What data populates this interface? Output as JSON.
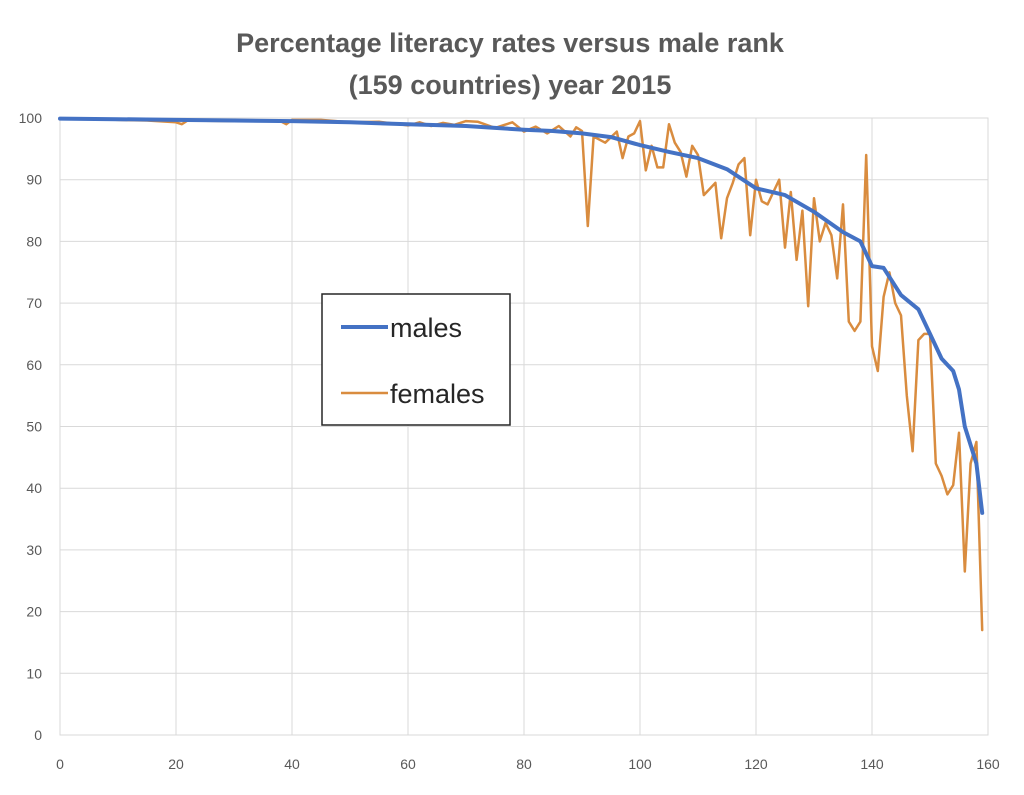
{
  "chart_data": {
    "type": "line",
    "title_lines": [
      "Percentage literacy rates versus male rank",
      "(159 countries) year 2015"
    ],
    "xlabel": "",
    "ylabel": "",
    "xlim": [
      0,
      160
    ],
    "ylim": [
      0,
      100
    ],
    "x_ticks": [
      0,
      20,
      40,
      60,
      80,
      100,
      120,
      140,
      160
    ],
    "y_ticks": [
      0,
      10,
      20,
      30,
      40,
      50,
      60,
      70,
      80,
      90,
      100
    ],
    "grid": true,
    "legend_position": "center-left",
    "series": [
      {
        "name": "males",
        "color": "#4472c4",
        "points": [
          [
            0,
            99.9
          ],
          [
            10,
            99.8
          ],
          [
            20,
            99.7
          ],
          [
            30,
            99.6
          ],
          [
            40,
            99.5
          ],
          [
            50,
            99.3
          ],
          [
            60,
            99.0
          ],
          [
            70,
            98.7
          ],
          [
            75,
            98.4
          ],
          [
            80,
            98.1
          ],
          [
            85,
            97.9
          ],
          [
            90,
            97.5
          ],
          [
            95,
            96.9
          ],
          [
            100,
            95.6
          ],
          [
            105,
            94.5
          ],
          [
            110,
            93.5
          ],
          [
            115,
            91.7
          ],
          [
            120,
            88.6
          ],
          [
            125,
            87.5
          ],
          [
            130,
            84.8
          ],
          [
            135,
            81.5
          ],
          [
            138,
            80.0
          ],
          [
            140,
            76.0
          ],
          [
            142,
            75.7
          ],
          [
            145,
            71.3
          ],
          [
            148,
            69.0
          ],
          [
            150,
            65.0
          ],
          [
            152,
            61.0
          ],
          [
            154,
            59.0
          ],
          [
            155,
            56.0
          ],
          [
            156,
            50.0
          ],
          [
            157,
            47.0
          ],
          [
            158,
            44.0
          ],
          [
            159,
            36.0
          ]
        ]
      },
      {
        "name": "females",
        "color": "#d98c3f",
        "points": [
          [
            0,
            99.8
          ],
          [
            5,
            99.9
          ],
          [
            10,
            99.7
          ],
          [
            15,
            99.6
          ],
          [
            20,
            99.3
          ],
          [
            21,
            99.0
          ],
          [
            22,
            99.6
          ],
          [
            30,
            99.5
          ],
          [
            38,
            99.5
          ],
          [
            39,
            99.0
          ],
          [
            40,
            99.7
          ],
          [
            45,
            99.7
          ],
          [
            50,
            99.3
          ],
          [
            55,
            99.4
          ],
          [
            60,
            98.8
          ],
          [
            62,
            99.3
          ],
          [
            64,
            98.7
          ],
          [
            66,
            99.2
          ],
          [
            68,
            98.9
          ],
          [
            70,
            99.5
          ],
          [
            72,
            99.4
          ],
          [
            75,
            98.4
          ],
          [
            78,
            99.3
          ],
          [
            80,
            97.8
          ],
          [
            82,
            98.6
          ],
          [
            84,
            97.5
          ],
          [
            86,
            98.7
          ],
          [
            88,
            97.0
          ],
          [
            89,
            98.5
          ],
          [
            90,
            97.9
          ],
          [
            91,
            82.5
          ],
          [
            92,
            97.0
          ],
          [
            94,
            96.0
          ],
          [
            96,
            97.8
          ],
          [
            97,
            93.5
          ],
          [
            98,
            97.0
          ],
          [
            99,
            97.5
          ],
          [
            100,
            99.5
          ],
          [
            101,
            91.5
          ],
          [
            102,
            95.5
          ],
          [
            103,
            92.0
          ],
          [
            104,
            92.0
          ],
          [
            105,
            99.0
          ],
          [
            106,
            96.0
          ],
          [
            107,
            94.5
          ],
          [
            108,
            90.5
          ],
          [
            109,
            95.5
          ],
          [
            110,
            94.0
          ],
          [
            111,
            87.5
          ],
          [
            112,
            88.5
          ],
          [
            113,
            89.5
          ],
          [
            114,
            80.5
          ],
          [
            115,
            87.0
          ],
          [
            116,
            89.5
          ],
          [
            117,
            92.5
          ],
          [
            118,
            93.5
          ],
          [
            119,
            81.0
          ],
          [
            120,
            90.0
          ],
          [
            121,
            86.5
          ],
          [
            122,
            86.0
          ],
          [
            123,
            88.0
          ],
          [
            124,
            90.0
          ],
          [
            125,
            79.0
          ],
          [
            126,
            88.0
          ],
          [
            127,
            77.0
          ],
          [
            128,
            85.0
          ],
          [
            129,
            69.5
          ],
          [
            130,
            87.0
          ],
          [
            131,
            80.0
          ],
          [
            132,
            83.0
          ],
          [
            133,
            81.0
          ],
          [
            134,
            74.0
          ],
          [
            135,
            86.0
          ],
          [
            136,
            67.0
          ],
          [
            137,
            65.5
          ],
          [
            138,
            67.0
          ],
          [
            139,
            94.0
          ],
          [
            140,
            63.0
          ],
          [
            141,
            59.0
          ],
          [
            142,
            71.0
          ],
          [
            143,
            75.0
          ],
          [
            144,
            70.0
          ],
          [
            145,
            68.0
          ],
          [
            146,
            55.0
          ],
          [
            147,
            46.0
          ],
          [
            148,
            64.0
          ],
          [
            149,
            65.0
          ],
          [
            150,
            65.0
          ],
          [
            151,
            44.0
          ],
          [
            152,
            42.0
          ],
          [
            153,
            39.0
          ],
          [
            154,
            40.5
          ],
          [
            155,
            49.0
          ],
          [
            156,
            26.5
          ],
          [
            157,
            44.0
          ],
          [
            158,
            47.5
          ],
          [
            159,
            17.0
          ]
        ]
      }
    ]
  }
}
